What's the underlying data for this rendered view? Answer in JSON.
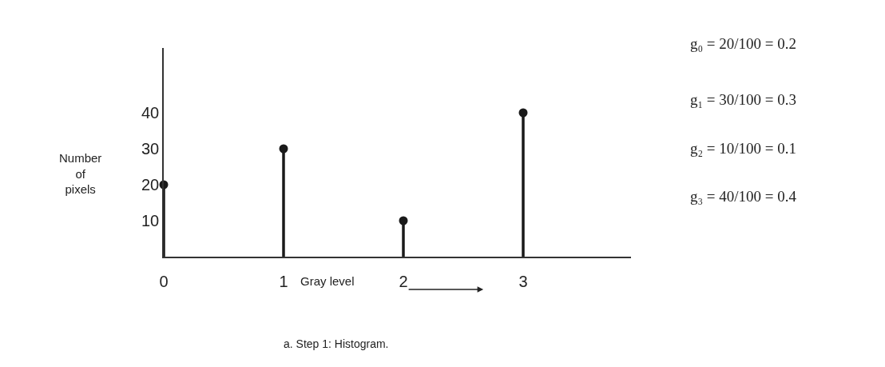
{
  "chart_data": {
    "type": "lollipop",
    "xlabel": "Gray level",
    "ylabel": "Number of pixels",
    "x": [
      0,
      1,
      2,
      3
    ],
    "values": [
      20,
      30,
      10,
      40
    ],
    "color": "#1a1a1a",
    "marker": "circle",
    "xlim": [
      0,
      3.9
    ],
    "ylim": [
      0,
      58
    ],
    "xticks": [
      0,
      1,
      2,
      3
    ],
    "yticks": [
      10,
      20,
      30,
      40
    ],
    "grid": false,
    "annotations": [
      "g₀ = 20/100 = 0.2",
      "g₁ = 30/100 = 0.3",
      "g₂ = 10/100 = 0.1",
      "g₃ = 40/100 = 0.4",
      "a. Step 1: Histogram."
    ]
  }
}
